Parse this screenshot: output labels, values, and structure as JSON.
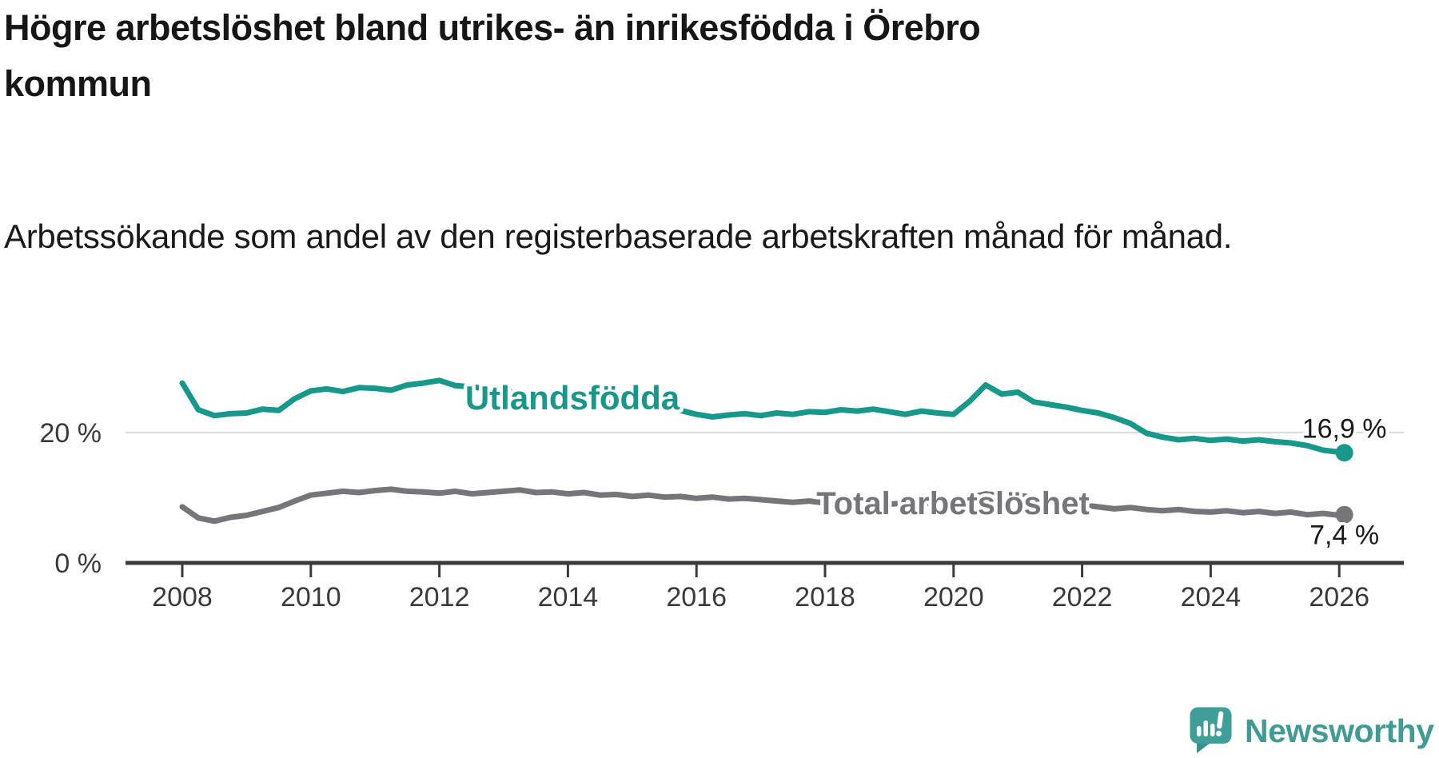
{
  "header": {
    "title": "Högre arbetslöshet bland utrikes- än inrikesfödda i Örebro kommun",
    "subtitle": "Arbetssökande som andel av den registerbaserade arbetskraften månad för månad."
  },
  "footer": {
    "brand": "Newsworthy",
    "logo_icon": "speech-bubble-with-bar-chart-and-exclamation"
  },
  "colors": {
    "background": "#ffffff",
    "title_text": "#161616",
    "subtitle_text": "#1a1a1a",
    "axis": "#3b3b3b",
    "tick_label": "#3a3a3a",
    "gridline": "#dcdcdc",
    "annotation_text": "#1a1a1a",
    "series_teal": "#17988b",
    "series_gray": "#76757a",
    "brand_teal": "#3f9b93"
  },
  "chart_data": {
    "type": "line",
    "title": "Högre arbetslöshet bland utrikes- än inrikesfödda i Örebro kommun",
    "subtitle": "Arbetssökande som andel av den registerbaserade arbetskraften månad för månad.",
    "x_unit": "year (monthly register data, shown 2008–2026)",
    "y_unit": "percent of register-based labour force",
    "xlim": [
      2007.1,
      2027
    ],
    "ylim": [
      0,
      37
    ],
    "x_ticks": [
      2008,
      2010,
      2012,
      2014,
      2016,
      2018,
      2020,
      2022,
      2024,
      2026
    ],
    "y_ticks": [
      {
        "value": 0,
        "label": "0 %"
      },
      {
        "value": 20,
        "label": "20 %"
      }
    ],
    "grid": "horizontal gridline at 20 % only",
    "legend": "inline labels on lines, value labels at line ends",
    "series": [
      {
        "name": "Utlandsfödda",
        "color": "#17988b",
        "x_start": 2008,
        "x_step": 0.25,
        "values": [
          27.6,
          23.5,
          22.6,
          22.9,
          23.0,
          23.6,
          23.4,
          25.2,
          26.4,
          26.7,
          26.3,
          26.9,
          26.8,
          26.5,
          27.3,
          27.6,
          28.0,
          27.2,
          27.0,
          26.7,
          26.4,
          26.0,
          25.7,
          25.4,
          25.2,
          24.9,
          24.7,
          24.4,
          24.2,
          23.9,
          23.7,
          23.4,
          22.8,
          22.4,
          22.7,
          22.9,
          22.6,
          23.0,
          22.8,
          23.2,
          23.1,
          23.5,
          23.3,
          23.6,
          23.2,
          22.8,
          23.3,
          23.0,
          22.8,
          24.8,
          27.3,
          25.9,
          26.2,
          24.7,
          24.3,
          23.9,
          23.4,
          23.0,
          22.3,
          21.4,
          19.9,
          19.3,
          18.9,
          19.1,
          18.8,
          19.0,
          18.7,
          18.9,
          18.6,
          18.4,
          18.0,
          17.3,
          17.0
        ],
        "end": {
          "x": 2026.08,
          "y": 16.9
        },
        "end_label": "16,9 %",
        "end_label_side": "above"
      },
      {
        "name": "Total arbetslöshet",
        "color": "#76757a",
        "x_start": 2008,
        "x_step": 0.25,
        "values": [
          8.6,
          6.9,
          6.4,
          7.0,
          7.3,
          7.9,
          8.5,
          9.5,
          10.4,
          10.7,
          11.0,
          10.8,
          11.1,
          11.3,
          11.0,
          10.9,
          10.7,
          11.0,
          10.6,
          10.8,
          11.0,
          11.2,
          10.8,
          10.9,
          10.6,
          10.8,
          10.4,
          10.5,
          10.2,
          10.4,
          10.1,
          10.2,
          9.9,
          10.1,
          9.8,
          9.9,
          9.7,
          9.5,
          9.3,
          9.5,
          9.2,
          9.4,
          9.1,
          9.3,
          9.0,
          9.2,
          9.1,
          9.3,
          9.2,
          10.0,
          10.6,
          10.3,
          10.4,
          10.0,
          9.6,
          9.2,
          8.9,
          8.6,
          8.3,
          8.5,
          8.2,
          8.0,
          8.2,
          7.9,
          7.8,
          8.0,
          7.7,
          7.9,
          7.6,
          7.8,
          7.4,
          7.6,
          7.3
        ],
        "end": {
          "x": 2026.08,
          "y": 7.4
        },
        "end_label": "7,4 %",
        "end_label_side": "below"
      }
    ]
  }
}
